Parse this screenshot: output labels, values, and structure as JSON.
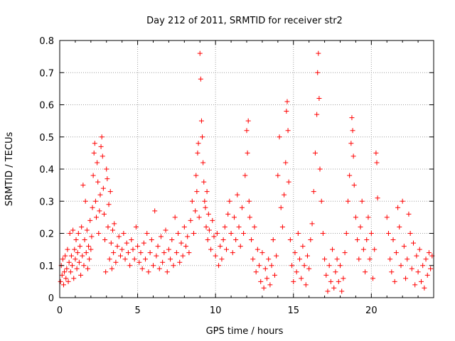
{
  "chart_data": {
    "type": "scatter",
    "title": "Day 212 of 2011, SRMTID for receiver str2",
    "xlabel": "GPS time / hours",
    "ylabel": "SRMTID / TECUs",
    "xlim": [
      0,
      24
    ],
    "ylim": [
      0,
      0.8
    ],
    "x_ticks": [
      0,
      5,
      10,
      15,
      20
    ],
    "x_tick_labels": [
      "0",
      "5",
      "10",
      "15",
      "20"
    ],
    "y_ticks": [
      0,
      0.1,
      0.2,
      0.3,
      0.4,
      0.5,
      0.6,
      0.7,
      0.8
    ],
    "y_tick_labels": [
      "0",
      "0.1",
      "0.2",
      "0.3",
      "0.4",
      "0.5",
      "0.6",
      "0.7",
      "0.8"
    ],
    "grid": true,
    "marker": "+",
    "color": "#ff0000",
    "series": [
      {
        "name": "str2",
        "points": [
          [
            0.05,
            0.05
          ],
          [
            0.1,
            0.1
          ],
          [
            0.15,
            0.07
          ],
          [
            0.2,
            0.12
          ],
          [
            0.25,
            0.04
          ],
          [
            0.3,
            0.08
          ],
          [
            0.35,
            0.13
          ],
          [
            0.4,
            0.06
          ],
          [
            0.45,
            0.09
          ],
          [
            0.5,
            0.15
          ],
          [
            0.55,
            0.05
          ],
          [
            0.6,
            0.11
          ],
          [
            0.65,
            0.2
          ],
          [
            0.7,
            0.08
          ],
          [
            0.75,
            0.13
          ],
          [
            0.8,
            0.1
          ],
          [
            0.85,
            0.21
          ],
          [
            0.9,
            0.06
          ],
          [
            0.95,
            0.15
          ],
          [
            1.0,
            0.12
          ],
          [
            1.05,
            0.18
          ],
          [
            1.1,
            0.09
          ],
          [
            1.15,
            0.14
          ],
          [
            1.2,
            0.2
          ],
          [
            1.25,
            0.11
          ],
          [
            1.3,
            0.16
          ],
          [
            1.35,
            0.07
          ],
          [
            1.4,
            0.22
          ],
          [
            1.45,
            0.13
          ],
          [
            1.5,
            0.35
          ],
          [
            1.55,
            0.1
          ],
          [
            1.6,
            0.18
          ],
          [
            1.65,
            0.3
          ],
          [
            1.7,
            0.14
          ],
          [
            1.75,
            0.21
          ],
          [
            1.8,
            0.09
          ],
          [
            1.85,
            0.16
          ],
          [
            1.9,
            0.12
          ],
          [
            1.95,
            0.24
          ],
          [
            2.0,
            0.15
          ],
          [
            2.05,
            0.19
          ],
          [
            2.1,
            0.28
          ],
          [
            2.15,
            0.38
          ],
          [
            2.2,
            0.45
          ],
          [
            2.25,
            0.48
          ],
          [
            2.3,
            0.3
          ],
          [
            2.35,
            0.25
          ],
          [
            2.4,
            0.42
          ],
          [
            2.45,
            0.36
          ],
          [
            2.5,
            0.2
          ],
          [
            2.55,
            0.27
          ],
          [
            2.6,
            0.32
          ],
          [
            2.65,
            0.47
          ],
          [
            2.7,
            0.5
          ],
          [
            2.75,
            0.44
          ],
          [
            2.8,
            0.34
          ],
          [
            2.85,
            0.26
          ],
          [
            2.9,
            0.18
          ],
          [
            2.95,
            0.08
          ],
          [
            3.0,
            0.4
          ],
          [
            3.05,
            0.37
          ],
          [
            3.1,
            0.22
          ],
          [
            3.15,
            0.29
          ],
          [
            3.2,
            0.12
          ],
          [
            3.25,
            0.33
          ],
          [
            3.3,
            0.17
          ],
          [
            3.35,
            0.09
          ],
          [
            3.4,
            0.21
          ],
          [
            3.45,
            0.14
          ],
          [
            3.5,
            0.23
          ],
          [
            3.6,
            0.11
          ],
          [
            3.7,
            0.16
          ],
          [
            3.8,
            0.19
          ],
          [
            3.9,
            0.13
          ],
          [
            4.0,
            0.15
          ],
          [
            4.1,
            0.2
          ],
          [
            4.2,
            0.12
          ],
          [
            4.3,
            0.17
          ],
          [
            4.4,
            0.14
          ],
          [
            4.5,
            0.1
          ],
          [
            4.6,
            0.18
          ],
          [
            4.7,
            0.15
          ],
          [
            4.8,
            0.12
          ],
          [
            4.9,
            0.22
          ],
          [
            5.0,
            0.16
          ],
          [
            5.1,
            0.11
          ],
          [
            5.2,
            0.14
          ],
          [
            5.3,
            0.09
          ],
          [
            5.4,
            0.17
          ],
          [
            5.5,
            0.12
          ],
          [
            5.6,
            0.2
          ],
          [
            5.7,
            0.08
          ],
          [
            5.8,
            0.14
          ],
          [
            5.9,
            0.18
          ],
          [
            6.0,
            0.1
          ],
          [
            6.1,
            0.27
          ],
          [
            6.2,
            0.13
          ],
          [
            6.3,
            0.16
          ],
          [
            6.4,
            0.09
          ],
          [
            6.5,
            0.19
          ],
          [
            6.6,
            0.11
          ],
          [
            6.7,
            0.14
          ],
          [
            6.8,
            0.21
          ],
          [
            6.9,
            0.08
          ],
          [
            7.0,
            0.15
          ],
          [
            7.1,
            0.12
          ],
          [
            7.2,
            0.18
          ],
          [
            7.3,
            0.1
          ],
          [
            7.4,
            0.25
          ],
          [
            7.5,
            0.14
          ],
          [
            7.6,
            0.2
          ],
          [
            7.7,
            0.11
          ],
          [
            7.8,
            0.17
          ],
          [
            7.9,
            0.13
          ],
          [
            8.0,
            0.22
          ],
          [
            8.1,
            0.16
          ],
          [
            8.2,
            0.19
          ],
          [
            8.3,
            0.14
          ],
          [
            8.4,
            0.24
          ],
          [
            8.5,
            0.3
          ],
          [
            8.6,
            0.2
          ],
          [
            8.7,
            0.27
          ],
          [
            8.75,
            0.38
          ],
          [
            8.8,
            0.33
          ],
          [
            8.85,
            0.45
          ],
          [
            8.9,
            0.48
          ],
          [
            8.95,
            0.25
          ],
          [
            9.0,
            0.76
          ],
          [
            9.05,
            0.68
          ],
          [
            9.1,
            0.55
          ],
          [
            9.15,
            0.5
          ],
          [
            9.2,
            0.42
          ],
          [
            9.25,
            0.36
          ],
          [
            9.3,
            0.3
          ],
          [
            9.35,
            0.28
          ],
          [
            9.4,
            0.22
          ],
          [
            9.45,
            0.33
          ],
          [
            9.5,
            0.18
          ],
          [
            9.55,
            0.26
          ],
          [
            9.6,
            0.21
          ],
          [
            9.7,
            0.15
          ],
          [
            9.8,
            0.24
          ],
          [
            9.9,
            0.19
          ],
          [
            10.0,
            0.13
          ],
          [
            10.1,
            0.2
          ],
          [
            10.2,
            0.1
          ],
          [
            10.3,
            0.16
          ],
          [
            10.4,
            0.12
          ],
          [
            10.5,
            0.18
          ],
          [
            10.6,
            0.22
          ],
          [
            10.7,
            0.15
          ],
          [
            10.8,
            0.26
          ],
          [
            10.9,
            0.3
          ],
          [
            11.0,
            0.2
          ],
          [
            11.1,
            0.14
          ],
          [
            11.2,
            0.25
          ],
          [
            11.3,
            0.18
          ],
          [
            11.4,
            0.32
          ],
          [
            11.5,
            0.22
          ],
          [
            11.6,
            0.16
          ],
          [
            11.7,
            0.28
          ],
          [
            11.8,
            0.2
          ],
          [
            11.9,
            0.38
          ],
          [
            12.0,
            0.52
          ],
          [
            12.05,
            0.45
          ],
          [
            12.1,
            0.55
          ],
          [
            12.15,
            0.3
          ],
          [
            12.2,
            0.25
          ],
          [
            12.3,
            0.18
          ],
          [
            12.4,
            0.12
          ],
          [
            12.5,
            0.22
          ],
          [
            12.6,
            0.08
          ],
          [
            12.7,
            0.15
          ],
          [
            12.8,
            0.1
          ],
          [
            12.9,
            0.05
          ],
          [
            13.0,
            0.14
          ],
          [
            13.1,
            0.03
          ],
          [
            13.2,
            0.09
          ],
          [
            13.3,
            0.06
          ],
          [
            13.4,
            0.12
          ],
          [
            13.5,
            0.04
          ],
          [
            13.6,
            0.1
          ],
          [
            13.7,
            0.18
          ],
          [
            13.8,
            0.07
          ],
          [
            13.9,
            0.13
          ],
          [
            14.0,
            0.38
          ],
          [
            14.1,
            0.5
          ],
          [
            14.2,
            0.28
          ],
          [
            14.3,
            0.22
          ],
          [
            14.4,
            0.32
          ],
          [
            14.5,
            0.42
          ],
          [
            14.55,
            0.58
          ],
          [
            14.6,
            0.61
          ],
          [
            14.65,
            0.52
          ],
          [
            14.7,
            0.36
          ],
          [
            14.8,
            0.18
          ],
          [
            14.9,
            0.1
          ],
          [
            15.0,
            0.05
          ],
          [
            15.1,
            0.14
          ],
          [
            15.2,
            0.08
          ],
          [
            15.3,
            0.2
          ],
          [
            15.4,
            0.12
          ],
          [
            15.5,
            0.06
          ],
          [
            15.6,
            0.16
          ],
          [
            15.7,
            0.1
          ],
          [
            15.8,
            0.04
          ],
          [
            15.9,
            0.13
          ],
          [
            16.0,
            0.09
          ],
          [
            16.1,
            0.18
          ],
          [
            16.2,
            0.23
          ],
          [
            16.3,
            0.33
          ],
          [
            16.4,
            0.45
          ],
          [
            16.5,
            0.57
          ],
          [
            16.55,
            0.7
          ],
          [
            16.6,
            0.76
          ],
          [
            16.65,
            0.62
          ],
          [
            16.7,
            0.4
          ],
          [
            16.8,
            0.3
          ],
          [
            16.9,
            0.2
          ],
          [
            17.0,
            0.12
          ],
          [
            17.1,
            0.07
          ],
          [
            17.2,
            0.02
          ],
          [
            17.3,
            0.1
          ],
          [
            17.4,
            0.05
          ],
          [
            17.5,
            0.15
          ],
          [
            17.6,
            0.03
          ],
          [
            17.7,
            0.08
          ],
          [
            17.8,
            0.12
          ],
          [
            17.9,
            0.05
          ],
          [
            18.0,
            0.1
          ],
          [
            18.1,
            0.02
          ],
          [
            18.2,
            0.06
          ],
          [
            18.3,
            0.14
          ],
          [
            18.4,
            0.2
          ],
          [
            18.5,
            0.3
          ],
          [
            18.6,
            0.38
          ],
          [
            18.7,
            0.48
          ],
          [
            18.75,
            0.56
          ],
          [
            18.8,
            0.52
          ],
          [
            18.85,
            0.44
          ],
          [
            18.9,
            0.35
          ],
          [
            19.0,
            0.25
          ],
          [
            19.1,
            0.18
          ],
          [
            19.2,
            0.12
          ],
          [
            19.3,
            0.22
          ],
          [
            19.4,
            0.3
          ],
          [
            19.5,
            0.15
          ],
          [
            19.6,
            0.08
          ],
          [
            19.7,
            0.18
          ],
          [
            19.8,
            0.25
          ],
          [
            19.9,
            0.12
          ],
          [
            20.0,
            0.2
          ],
          [
            20.1,
            0.06
          ],
          [
            20.2,
            0.15
          ],
          [
            20.3,
            0.45
          ],
          [
            20.35,
            0.42
          ],
          [
            20.4,
            0.31
          ],
          [
            21.0,
            0.25
          ],
          [
            21.1,
            0.2
          ],
          [
            21.2,
            0.12
          ],
          [
            21.3,
            0.08
          ],
          [
            21.4,
            0.18
          ],
          [
            21.5,
            0.05
          ],
          [
            21.6,
            0.14
          ],
          [
            21.7,
            0.28
          ],
          [
            21.8,
            0.22
          ],
          [
            21.9,
            0.1
          ],
          [
            22.0,
            0.3
          ],
          [
            22.1,
            0.16
          ],
          [
            22.2,
            0.06
          ],
          [
            22.3,
            0.12
          ],
          [
            22.4,
            0.26
          ],
          [
            22.5,
            0.2
          ],
          [
            22.6,
            0.09
          ],
          [
            22.7,
            0.17
          ],
          [
            22.8,
            0.04
          ],
          [
            22.9,
            0.13
          ],
          [
            23.0,
            0.08
          ],
          [
            23.1,
            0.15
          ],
          [
            23.2,
            0.05
          ],
          [
            23.3,
            0.1
          ],
          [
            23.4,
            0.03
          ],
          [
            23.5,
            0.12
          ],
          [
            23.6,
            0.07
          ],
          [
            23.7,
            0.14
          ],
          [
            23.8,
            0.09
          ],
          [
            23.9,
            0.13
          ]
        ]
      }
    ]
  }
}
